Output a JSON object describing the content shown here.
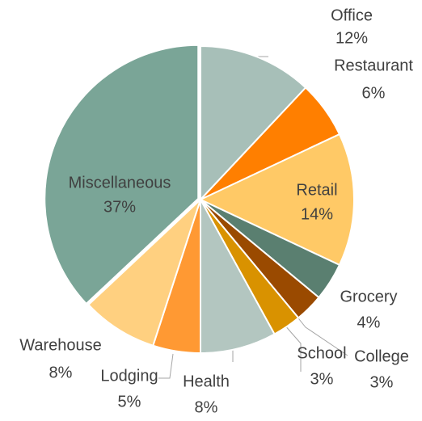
{
  "chart_data": {
    "type": "pie",
    "categories": [
      "Office",
      "Restaurant",
      "Retail",
      "Grocery",
      "College",
      "School",
      "Health",
      "Lodging",
      "Warehouse",
      "Miscellaneous"
    ],
    "values": [
      12,
      6,
      14,
      4,
      3,
      3,
      8,
      5,
      8,
      37
    ],
    "value_labels": [
      "12%",
      "6%",
      "14%",
      "4%",
      "3%",
      "3%",
      "8%",
      "5%",
      "8%",
      "37%"
    ],
    "colors": [
      "#a7bfb8",
      "#ff7f00",
      "#ffc966",
      "#5a7f70",
      "#9a4a00",
      "#d99200",
      "#b3c6c0",
      "#ff9933",
      "#ffd080",
      "#7aa597"
    ]
  }
}
